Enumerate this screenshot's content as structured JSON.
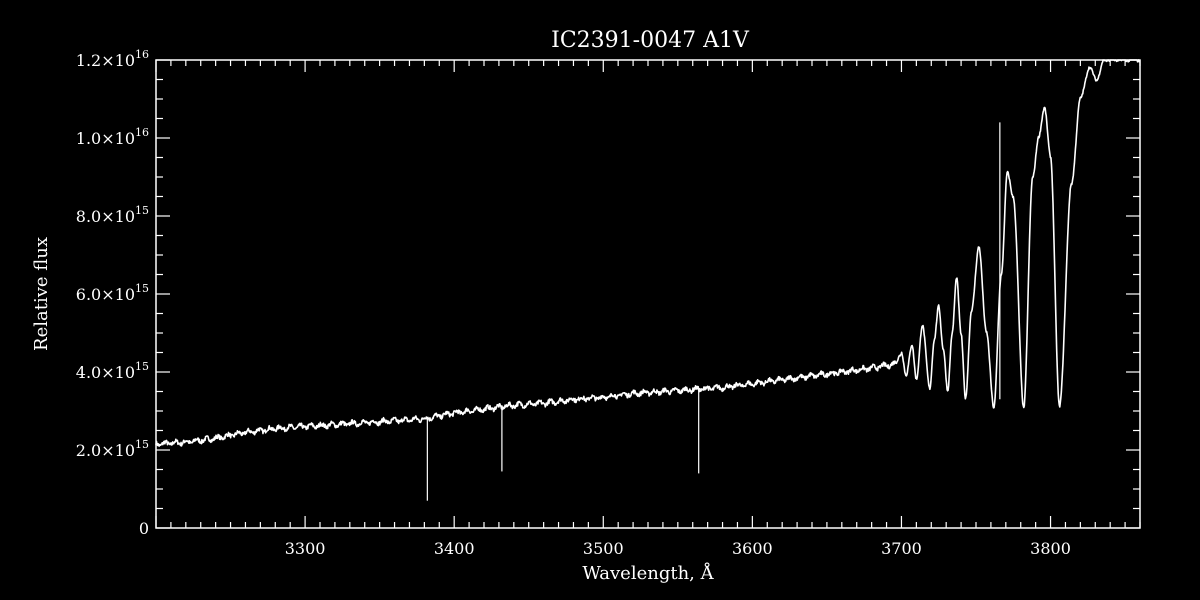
{
  "colors": {
    "background": "#000000",
    "foreground": "#ffffff"
  },
  "chart_data": {
    "type": "line",
    "title": "IC2391-0047  A1V",
    "xlabel": "Wavelength, Å",
    "ylabel": "Relative flux",
    "xlim": [
      3200,
      3860
    ],
    "ylim": [
      0,
      1.2e+16
    ],
    "grid": false,
    "x_ticks": [
      {
        "value": 3300,
        "label": "3300"
      },
      {
        "value": 3400,
        "label": "3400"
      },
      {
        "value": 3500,
        "label": "3500"
      },
      {
        "value": 3600,
        "label": "3600"
      },
      {
        "value": 3700,
        "label": "3700"
      },
      {
        "value": 3800,
        "label": "3800"
      }
    ],
    "y_ticks": [
      {
        "value": 0,
        "mant": "0",
        "exp": ""
      },
      {
        "value": 2000000000000000.0,
        "mant": "2.0×10",
        "exp": "15"
      },
      {
        "value": 4000000000000000.0,
        "mant": "4.0×10",
        "exp": "15"
      },
      {
        "value": 6000000000000000.0,
        "mant": "6.0×10",
        "exp": "15"
      },
      {
        "value": 8000000000000000.0,
        "mant": "8.0×10",
        "exp": "15"
      },
      {
        "value": 1e+16,
        "mant": "1.0×10",
        "exp": "16"
      },
      {
        "value": 1.2e+16,
        "mant": "1.2×10",
        "exp": "16"
      }
    ],
    "series": [
      {
        "x": [
          3200,
          3220,
          3240,
          3260,
          3280,
          3300,
          3320,
          3340,
          3360,
          3380,
          3400,
          3420,
          3440,
          3460,
          3480,
          3500,
          3520,
          3540,
          3560,
          3580,
          3600,
          3620,
          3640,
          3660,
          3680,
          3695,
          3700,
          3703,
          3707,
          3710,
          3714,
          3719,
          3722,
          3725,
          3728,
          3731,
          3734,
          3737,
          3740,
          3743,
          3747,
          3752,
          3757,
          3762,
          3767,
          3771,
          3775,
          3782,
          3788,
          3792,
          3796,
          3800,
          3806,
          3814,
          3820,
          3826,
          3831,
          3836,
          3842,
          3850,
          3856,
          3860
        ],
        "y": [
          2150000000000000.0,
          2200000000000000.0,
          2300000000000000.0,
          2450000000000000.0,
          2550000000000000.0,
          2600000000000000.0,
          2650000000000000.0,
          2700000000000000.0,
          2750000000000000.0,
          2800000000000000.0,
          2950000000000000.0,
          3050000000000000.0,
          3150000000000000.0,
          3200000000000000.0,
          3300000000000000.0,
          3350000000000000.0,
          3450000000000000.0,
          3500000000000000.0,
          3550000000000000.0,
          3600000000000000.0,
          3700000000000000.0,
          3800000000000000.0,
          3900000000000000.0,
          4000000000000000.0,
          4100000000000000.0,
          4200000000000000.0,
          4500000000000000.0,
          3900000000000000.0,
          4700000000000000.0,
          3800000000000000.0,
          5200000000000000.0,
          3600000000000000.0,
          4800000000000000.0,
          5700000000000000.0,
          4600000000000000.0,
          3500000000000000.0,
          5000000000000000.0,
          6400000000000000.0,
          5000000000000000.0,
          3300000000000000.0,
          5600000000000000.0,
          7200000000000000.0,
          5000000000000000.0,
          3100000000000000.0,
          6500000000000000.0,
          9100000000000000.0,
          8500000000000000.0,
          3100000000000000.0,
          9000000000000000.0,
          1e+16,
          1.08e+16,
          9500000000000000.0,
          3100000000000000.0,
          8800000000000000.0,
          1.1e+16,
          1.18e+16,
          1.15e+16,
          1.2e+16,
          1.2e+16,
          1.2e+16,
          1.2e+16,
          1.2e+16
        ]
      }
    ],
    "spikes": [
      {
        "x": 3382,
        "y_top": 2800000000000000.0,
        "y_bottom": 700000000000000.0
      },
      {
        "x": 3432,
        "y_top": 3100000000000000.0,
        "y_bottom": 1450000000000000.0
      },
      {
        "x": 3564,
        "y_top": 3550000000000000.0,
        "y_bottom": 1400000000000000.0
      },
      {
        "x": 3766,
        "y_top": 1.04e+16,
        "y_bottom": 3300000000000000.0
      }
    ]
  }
}
